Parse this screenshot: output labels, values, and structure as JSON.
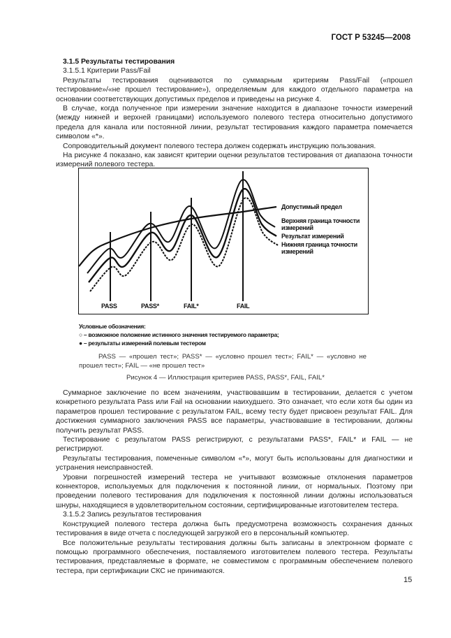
{
  "header": {
    "doc_id": "ГОСТ Р 53245—2008"
  },
  "section1": [
    {
      "type": "heading",
      "text": "3.1.5 Результаты тестирования"
    },
    {
      "type": "subheading",
      "text": "3.1.5.1 Критерии Pass/Fail"
    },
    {
      "type": "para",
      "text": "Результаты тестирования оцениваются по суммарным критериям Pass/Fail («прошел тестирование»/«не прошел тестирование»), определяемым для каждого отдельного параметра на основании соответствующих допустимых пределов и приведены на рисунке 4."
    },
    {
      "type": "para",
      "text": "В случае, когда полученное при измерении значение находится в диапазоне точности измерений (между нижней и верхней границами) используемого полевого тестера относительно допустимого предела для канала или постоянной линии, результат тестирования каждого параметра помечается символом «*»."
    },
    {
      "type": "para",
      "text": "Сопроводительный документ полевого тестера должен содержать инструкцию пользования."
    },
    {
      "type": "para",
      "text": "На рисунке 4 показано, как зависят критерии оценки результатов тестирования от диапазона точности измерений полевого тестера."
    }
  ],
  "figure": {
    "labels": {
      "limit": "Допустимый предел",
      "upper": "Верхняя граница точности измерений",
      "result": "Результат измерений",
      "lower": "Нижняя граница точности измерений"
    },
    "markers": [
      "PASS",
      "PASS*",
      "FAIL*",
      "FAIL"
    ],
    "legend_title": "Условные обозначения:",
    "legend_items": [
      "○ – возможное положение истинного значения тестируемого параметра;",
      "● – результаты измерений полевым тестером"
    ],
    "note": "PASS — «прошел тест»;  PASS* — «условно прошел тест»;  FAIL* — «условно не прошел тест»;  FAIL — «не прошел тест»",
    "caption": "Рисунок 4 — Иллюстрация критериев PASS, PASS*, FAIL, FAIL*"
  },
  "section2": [
    {
      "type": "para",
      "text": "Суммарное заключение по всем значениям, участвовавшим в тестировании, делается с учетом конкретного результата Pass или Fail на основании наихудшего. Это означает, что если хотя бы один из параметров прошел тестирование с результатом FAIL, всему тесту будет присвоен результат FAIL. Для достижения суммарного заключения PASS все параметры, участвовавшие в тестировании, должны получить результат PASS."
    },
    {
      "type": "para",
      "text": "Тестирование с результатом PASS регистрируют, с результатами PASS*, FAIL* и FAIL — не регистрируют."
    },
    {
      "type": "para",
      "text": "Результаты тестирования, помеченные символом «*», могут быть использованы для диагностики и устранения неисправностей."
    },
    {
      "type": "para",
      "text": "Уровни погрешностей измерений тестера не учитывают возможные отклонения параметров коннекторов, используемых для подключения к постоянной линии, от нормальных. Поэтому при проведении полевого тестирования для подключения к постоянной линии должны использоваться шнуры, находящиеся в удовлетворительном состоянии, сертифицированные изготовителем тестера."
    },
    {
      "type": "subheading",
      "text": "3.1.5.2 Запись результатов тестирования"
    },
    {
      "type": "para",
      "text": "Конструкцией полевого тестера должна быть предусмотрена возможность сохранения данных тестирования в виде отчета с последующей загрузкой его в персональный компьютер."
    },
    {
      "type": "para",
      "text": "Все положительные результаты тестирования должны быть записаны в электронном формате с помощью программного обеспечения, поставляемого изготовителем полевого тестера. Результаты тестирования, представляемые в формате, не совместимом с программным обеспечением полевого тестера, при сертификации СКС не принимаются."
    }
  ],
  "page_number": "15"
}
